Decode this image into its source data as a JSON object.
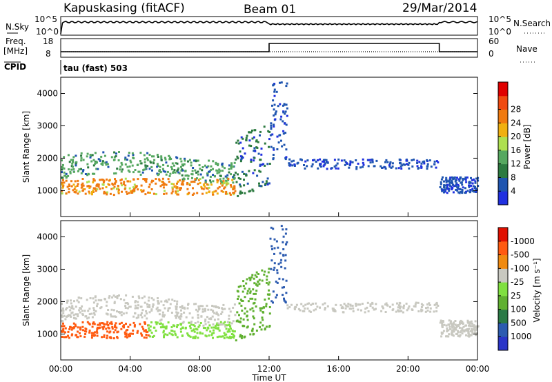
{
  "header": {
    "station": "Kapuskasing (fitACF)",
    "beam": "Beam 01",
    "date": "29/Mar/2014"
  },
  "nsky_panel": {
    "left_label": "N.Sky",
    "right_label": "N.Search",
    "left_ticks": [
      "10^5",
      "10^0"
    ],
    "right_ticks": [
      "10^5",
      "10^0"
    ]
  },
  "freq_panel": {
    "left_label_1": "Freq.",
    "left_label_2": "[MHz]",
    "left_ticks": [
      "18",
      "8"
    ],
    "right_label": "Nave",
    "right_ticks": [
      "60",
      "0"
    ],
    "cpid_label": "CPID",
    "cpid_value": "tau (fast) 503"
  },
  "colors": {
    "power": [
      "#2030e0",
      "#1f55b0",
      "#2c7a40",
      "#56a860",
      "#aee050",
      "#f0b010",
      "#f07a10",
      "#f04a10",
      "#e00000"
    ],
    "velocity": [
      "#2a35c8",
      "#2c5bb0",
      "#2b7a46",
      "#60b030",
      "#80e040",
      "#c8c8c0",
      "#f08a10",
      "#ff5a10",
      "#e01000"
    ]
  },
  "chart_data": [
    {
      "type": "heatmap",
      "name": "power",
      "ylabel": "Slant Range [km]",
      "yticks": [
        "1000",
        "2000",
        "3000",
        "4000"
      ],
      "ylim": [
        200,
        4500
      ],
      "xlim": [
        "00:00",
        "24:00"
      ],
      "colorbar_label": "Power [dB]",
      "colorbar_ticks": [
        "4",
        "8",
        "12",
        "16",
        "20",
        "24",
        "28"
      ],
      "clim": [
        0,
        30
      ]
    },
    {
      "type": "heatmap",
      "name": "velocity",
      "ylabel": "Slant Range [km]",
      "yticks": [
        "1000",
        "2000",
        "3000",
        "4000"
      ],
      "ylim": [
        200,
        4500
      ],
      "xlim": [
        "00:00",
        "24:00"
      ],
      "xticks": [
        "00:00",
        "04:00",
        "08:00",
        "12:00",
        "16:00",
        "20:00",
        "00:00"
      ],
      "xlabel": "Time UT",
      "colorbar_label": "Velocity [m s⁻¹]",
      "colorbar_ticks": [
        "1000",
        "500",
        "100",
        "25",
        "-25",
        "-100",
        "-500",
        "-1000"
      ]
    }
  ]
}
